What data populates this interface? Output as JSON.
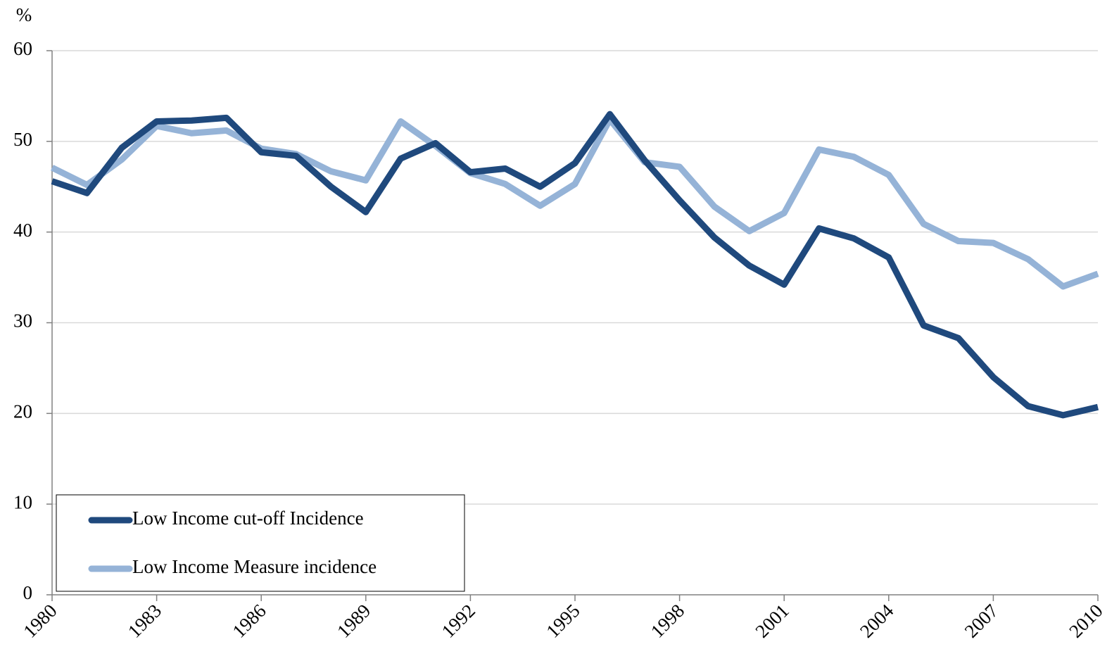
{
  "chart_data": {
    "type": "line",
    "y_label": "%",
    "x": [
      1980,
      1981,
      1982,
      1983,
      1984,
      1985,
      1986,
      1987,
      1988,
      1989,
      1990,
      1991,
      1992,
      1993,
      1994,
      1995,
      1996,
      1997,
      1998,
      1999,
      2000,
      2001,
      2002,
      2003,
      2004,
      2005,
      2006,
      2007,
      2008,
      2009,
      2010
    ],
    "series": [
      {
        "name": "Low Income cut-off Incidence",
        "color": "#1f497d",
        "values": [
          45.6,
          44.3,
          49.3,
          52.2,
          52.3,
          52.6,
          48.8,
          48.4,
          45.0,
          42.2,
          48.1,
          49.8,
          46.6,
          47.0,
          45.0,
          47.6,
          53.0,
          47.9,
          43.5,
          39.4,
          36.3,
          34.2,
          40.4,
          39.3,
          37.2,
          29.7,
          28.3,
          24.0,
          20.8,
          19.8,
          20.7
        ]
      },
      {
        "name": "Low Income Measure incidence",
        "color": "#95b3d7",
        "values": [
          47.1,
          45.2,
          48.0,
          51.7,
          50.9,
          51.2,
          49.2,
          48.6,
          46.7,
          45.7,
          52.2,
          49.5,
          46.5,
          45.3,
          42.9,
          45.3,
          52.4,
          47.7,
          47.2,
          42.8,
          40.1,
          42.1,
          49.1,
          48.3,
          46.3,
          40.9,
          39.0,
          38.8,
          37.0,
          34.0,
          35.4
        ]
      }
    ],
    "xlim": [
      1980,
      2010
    ],
    "xticks": [
      1980,
      1983,
      1986,
      1989,
      1992,
      1995,
      1998,
      2001,
      2004,
      2007,
      2010
    ],
    "ylim": [
      0,
      60
    ],
    "yticks": [
      0,
      10,
      20,
      30,
      40,
      50,
      60
    ],
    "grid": true,
    "legend": "lower left"
  }
}
